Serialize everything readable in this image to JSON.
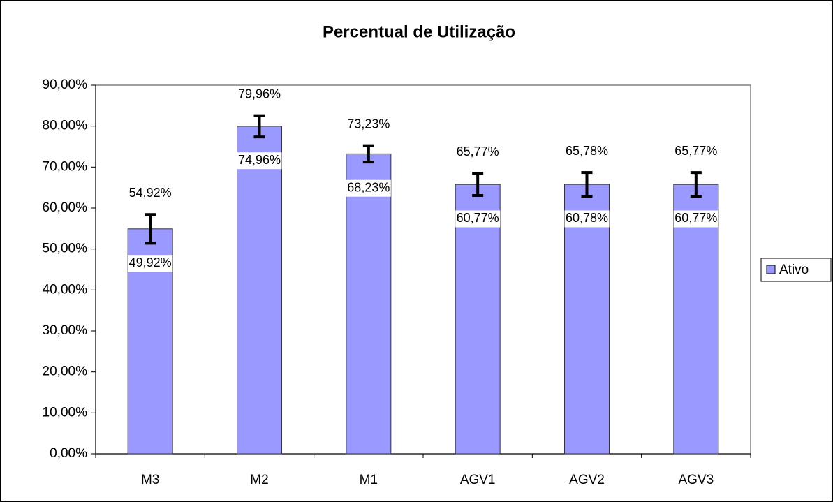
{
  "chart_data": {
    "type": "bar",
    "title": "Percentual de Utilização",
    "categories": [
      "M3",
      "M2",
      "M1",
      "AGV1",
      "AGV2",
      "AGV3"
    ],
    "series": [
      {
        "name": "Ativo",
        "color": "#9999ff",
        "values": [
          54.92,
          79.96,
          73.23,
          65.77,
          65.78,
          65.77
        ],
        "value_labels": [
          "54,92%",
          "79,96%",
          "73,23%",
          "65,77%",
          "65,78%",
          "65,77%"
        ],
        "errors": [
          3.5,
          2.6,
          2.0,
          2.7,
          2.9,
          2.9
        ],
        "inner_values": [
          49.92,
          74.96,
          68.23,
          60.77,
          60.78,
          60.77
        ],
        "inner_value_labels": [
          "49,92%",
          "74,96%",
          "68,23%",
          "60,77%",
          "60,78%",
          "60,77%"
        ]
      }
    ],
    "ylim": [
      0,
      90
    ],
    "yticks": [
      {
        "value": 0,
        "label": "0,00%"
      },
      {
        "value": 10,
        "label": "10,00%"
      },
      {
        "value": 20,
        "label": "20,00%"
      },
      {
        "value": 30,
        "label": "30,00%"
      },
      {
        "value": 40,
        "label": "40,00%"
      },
      {
        "value": 50,
        "label": "50,00%"
      },
      {
        "value": 60,
        "label": "60,00%"
      },
      {
        "value": 70,
        "label": "70,00%"
      },
      {
        "value": 80,
        "label": "80,00%"
      },
      {
        "value": 90,
        "label": "90,00%"
      }
    ],
    "grid": false,
    "legend": "right"
  }
}
